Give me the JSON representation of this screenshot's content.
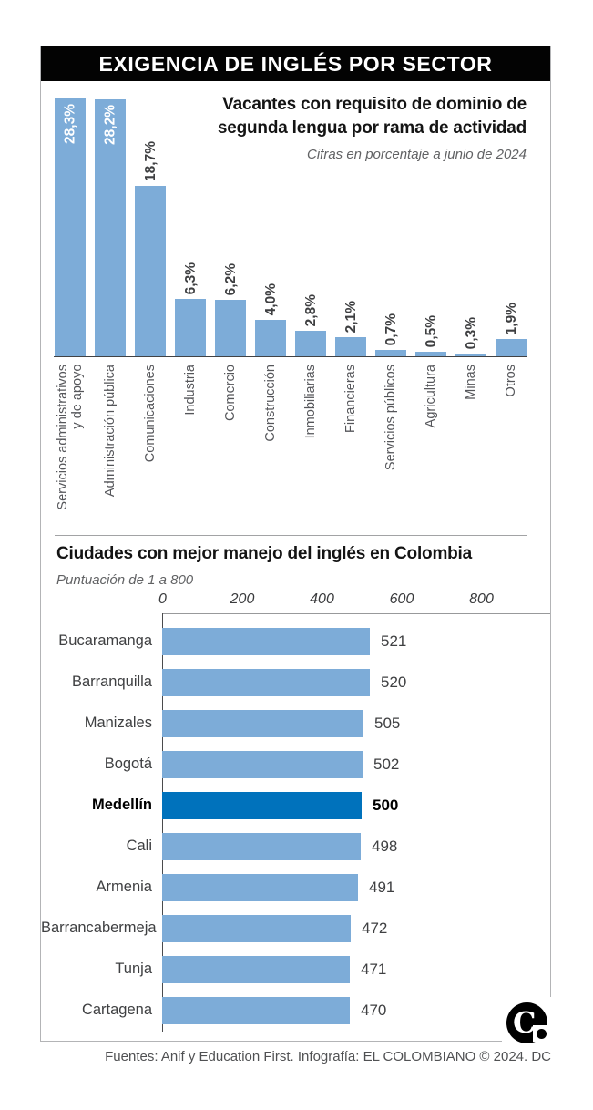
{
  "header": {
    "title": "EXIGENCIA DE INGLÉS POR SECTOR"
  },
  "colors": {
    "bar_light": "#7DACD8",
    "bar_highlight": "#0072BC",
    "header_bg": "#030303"
  },
  "chart_data": [
    {
      "type": "bar",
      "title": "Vacantes con requisito de dominio de segunda lengua por rama de actividad",
      "subtitle": "Cifras en porcentaje a junio de 2024",
      "ylabel": "",
      "xlabel": "",
      "ylim": [
        0,
        28.3
      ],
      "unit": "percent",
      "categories": [
        "Servicios administrativos\ny de apoyo",
        "Administración pública",
        "Comunicaciones",
        "Industria",
        "Comercio",
        "Construcción",
        "Inmobiliarias",
        "Financieras",
        "Servicios públicos",
        "Agricultura",
        "Minas",
        "Otros"
      ],
      "values": [
        28.3,
        28.2,
        18.7,
        6.3,
        6.2,
        4.0,
        2.8,
        2.1,
        0.7,
        0.5,
        0.3,
        1.9
      ],
      "value_labels": [
        "28,3%",
        "28,2%",
        "18,7%",
        "6,3%",
        "6,2%",
        "4,0%",
        "2,8%",
        "2,1%",
        "0,7%",
        "0,5%",
        "0,3%",
        "1,9%"
      ],
      "label_inside": [
        true,
        true,
        false,
        false,
        false,
        false,
        false,
        false,
        false,
        false,
        false,
        false
      ]
    },
    {
      "type": "bar",
      "orientation": "horizontal",
      "title": "Ciudades con mejor manejo del inglés en Colombia",
      "subtitle": "Puntuación de 1 a 800",
      "xlim": [
        0,
        800
      ],
      "axis_ticks": [
        0,
        200,
        400,
        600,
        800
      ],
      "categories": [
        "Bucaramanga",
        "Barranquilla",
        "Manizales",
        "Bogotá",
        "Medellín",
        "Cali",
        "Armenia",
        "Barrancabermeja",
        "Tunja",
        "Cartagena"
      ],
      "values": [
        521,
        520,
        505,
        502,
        500,
        498,
        491,
        472,
        471,
        470
      ],
      "highlight_index": 4,
      "highlight_label": "Medellín"
    }
  ],
  "footer": {
    "source": "Fuentes: Anif y Education First. Infografía: EL COLOMBIANO © 2024. DC"
  },
  "logo": {
    "letter": "C"
  }
}
